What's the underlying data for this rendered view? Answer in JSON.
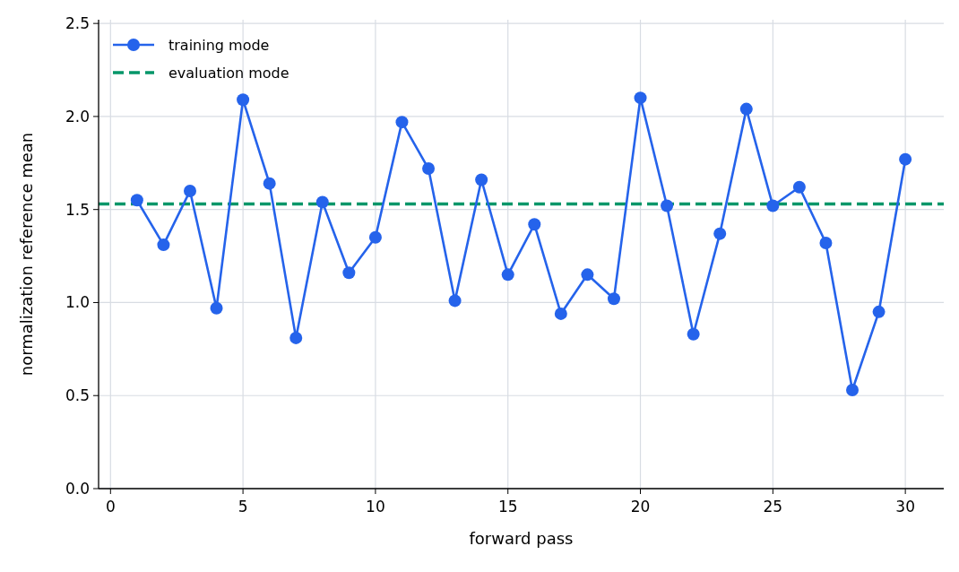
{
  "chart_data": {
    "type": "line",
    "xlabel": "forward pass",
    "ylabel": "normalization reference mean",
    "x": [
      1,
      2,
      3,
      4,
      5,
      6,
      7,
      8,
      9,
      10,
      11,
      12,
      13,
      14,
      15,
      16,
      17,
      18,
      19,
      20,
      21,
      22,
      23,
      24,
      25,
      26,
      27,
      28,
      29,
      30
    ],
    "series": [
      {
        "name": "training mode",
        "color": "#2563eb",
        "values": [
          1.55,
          1.31,
          1.6,
          0.97,
          2.09,
          1.64,
          0.81,
          1.54,
          1.16,
          1.35,
          1.97,
          1.72,
          1.01,
          1.66,
          1.15,
          1.42,
          0.94,
          1.15,
          1.02,
          2.1,
          1.52,
          0.83,
          1.37,
          2.04,
          1.52,
          1.62,
          1.32,
          0.53,
          0.95,
          1.77
        ]
      }
    ],
    "ref_lines": [
      {
        "axis": "y",
        "value": 1.53,
        "label": "evaluation mode",
        "color": "#059669",
        "line_style": "dashed"
      }
    ],
    "xlim": [
      -0.45,
      31.45
    ],
    "xticks": [
      0,
      5,
      10,
      15,
      20,
      25,
      30
    ],
    "ylim": [
      0,
      2.52
    ],
    "yticks": [
      {
        "value": 0,
        "label": "0.0"
      },
      0.5,
      {
        "value": 1,
        "label": "1.0"
      },
      1.5,
      {
        "value": 2,
        "label": "2.0"
      },
      2.5
    ],
    "grid": true,
    "legend": "top left",
    "marker": "circle",
    "line_style": "solid"
  }
}
